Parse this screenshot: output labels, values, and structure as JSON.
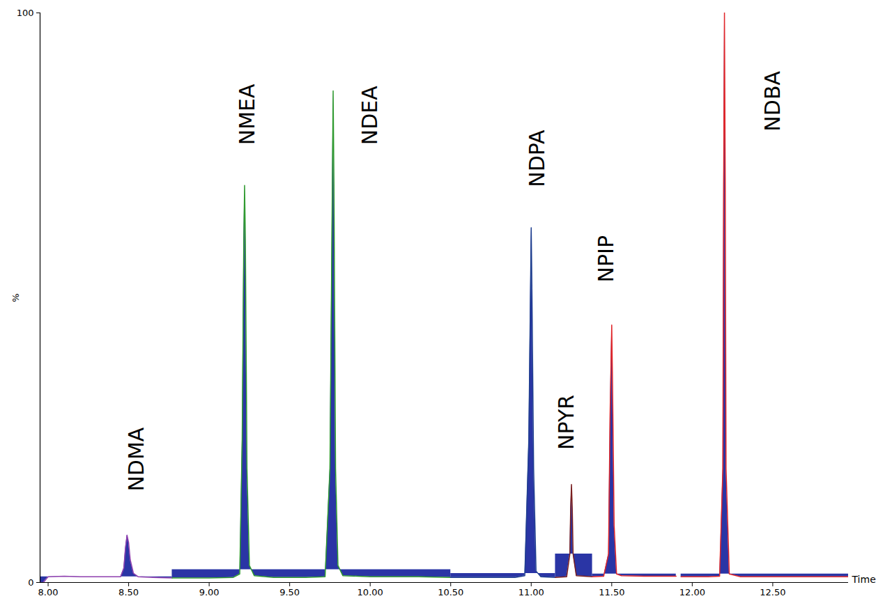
{
  "chart_data": {
    "type": "line",
    "x_label": "Time",
    "y_label": "%",
    "xlim": [
      7.95,
      12.97
    ],
    "ylim": [
      0,
      100
    ],
    "xticks": [
      {
        "value": 8.0,
        "label": "8.00"
      },
      {
        "value": 8.5,
        "label": "8.50"
      },
      {
        "value": 9.0,
        "label": "9.00"
      },
      {
        "value": 9.5,
        "label": "9.50"
      },
      {
        "value": 10.0,
        "label": "10.00"
      },
      {
        "value": 10.5,
        "label": "10.50"
      },
      {
        "value": 11.0,
        "label": "11.00"
      },
      {
        "value": 11.5,
        "label": "11.50"
      },
      {
        "value": 12.0,
        "label": "12.00"
      },
      {
        "value": 12.5,
        "label": "12.50"
      }
    ],
    "yticks": [
      0,
      100
    ],
    "series": [
      {
        "color": "#8e3fae",
        "x": [
          7.95,
          7.97,
          8.0,
          8.1,
          8.2,
          8.3,
          8.4,
          8.45,
          8.47,
          8.48,
          8.49,
          8.5,
          8.51,
          8.53,
          8.56,
          8.65,
          8.77
        ],
        "values": [
          0,
          0,
          1.0,
          1.1,
          1.0,
          1.0,
          1.0,
          1.0,
          2.5,
          6,
          8.3,
          7,
          4,
          1.6,
          1.0,
          0.9,
          0.8
        ]
      },
      {
        "color": "#2f9a2f",
        "x": [
          8.77,
          9.0,
          9.15,
          9.19,
          9.205,
          9.215,
          9.22,
          9.225,
          9.235,
          9.25,
          9.28,
          9.4,
          9.6,
          9.72,
          9.75,
          9.765,
          9.77,
          9.775,
          9.785,
          9.8,
          9.83,
          10.0,
          10.3,
          10.5
        ],
        "values": [
          0.8,
          0.8,
          0.9,
          1.5,
          25,
          60,
          69.7,
          60,
          20,
          3,
          1.2,
          0.9,
          0.9,
          1.0,
          20,
          70,
          86.3,
          70,
          20,
          3,
          1.2,
          1.0,
          1.0,
          0.9
        ]
      },
      {
        "color": "#1f3f8f",
        "x": [
          10.5,
          10.7,
          10.9,
          10.96,
          10.985,
          10.995,
          11.0,
          11.005,
          11.015,
          11.03,
          11.06,
          11.15
        ],
        "values": [
          0.9,
          0.9,
          0.9,
          1.2,
          25,
          50,
          62.3,
          50,
          20,
          2,
          1.0,
          0.9
        ]
      },
      {
        "color": "#7a1f1f",
        "x": [
          11.15,
          11.22,
          11.24,
          11.245,
          11.25,
          11.255,
          11.26,
          11.28,
          11.38
        ],
        "values": [
          0.9,
          1.0,
          5,
          13,
          17.2,
          13,
          5,
          1.2,
          1.0
        ]
      },
      {
        "color": "#e0262a",
        "x": [
          11.38,
          11.45,
          11.48,
          11.49,
          11.5,
          11.505,
          11.515,
          11.53,
          11.56,
          11.7,
          11.9,
          11.92,
          11.93,
          12.1,
          12.17,
          12.19,
          12.195,
          12.2,
          12.205,
          12.21,
          12.23,
          12.3,
          12.6,
          12.97
        ],
        "values": [
          1.0,
          1.1,
          5,
          30,
          45.2,
          35,
          10,
          1.5,
          1.2,
          1.1,
          1.1,
          null,
          1.0,
          1.0,
          1.1,
          20,
          70,
          100,
          70,
          20,
          1.5,
          1.0,
          1.0,
          1.0
        ]
      }
    ],
    "annotations": [
      {
        "text": "NDMA",
        "x": 8.55,
        "y": 16
      },
      {
        "text": "NMEA",
        "x": 9.24,
        "y": 76.8
      },
      {
        "text": "NDEA",
        "x": 10.0,
        "y": 76.8
      },
      {
        "text": "NDPA",
        "x": 11.04,
        "y": 69.4
      },
      {
        "text": "NPYR",
        "x": 11.22,
        "y": 23.3
      },
      {
        "text": "NPIP",
        "x": 11.47,
        "y": 52.7
      },
      {
        "text": "NDBA",
        "x": 12.5,
        "y": 79.2
      }
    ]
  }
}
